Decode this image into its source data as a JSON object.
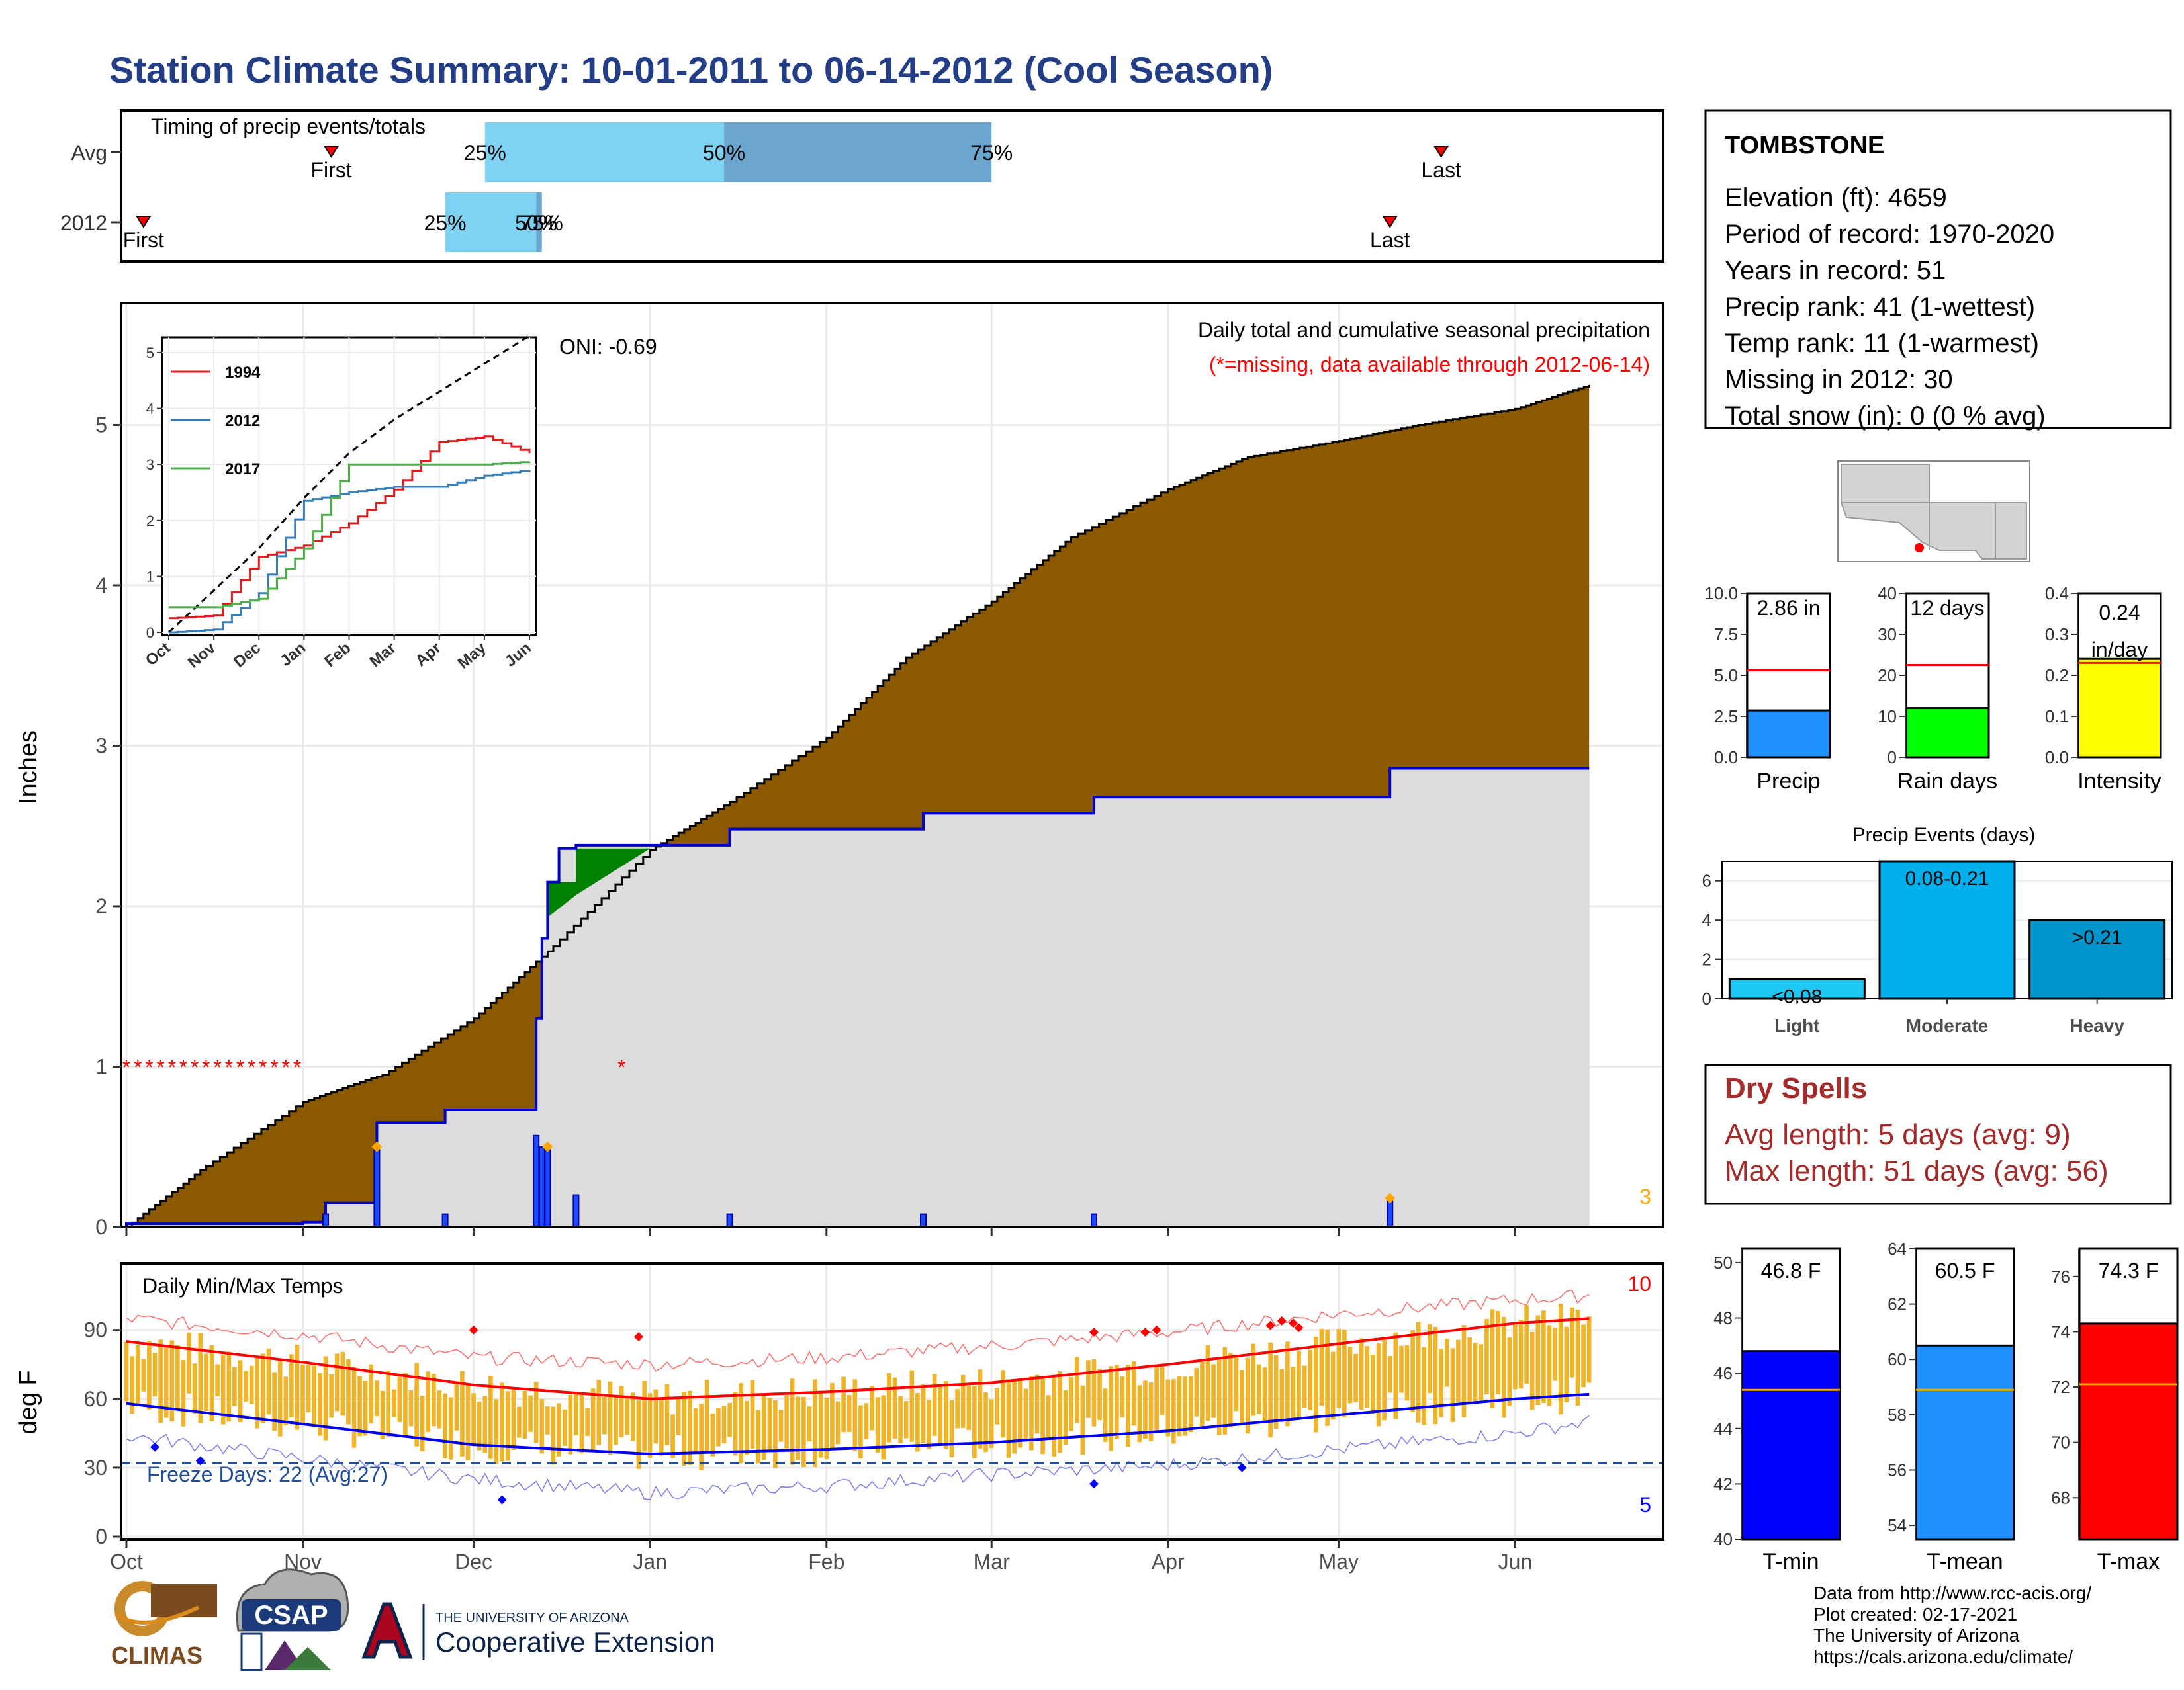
{
  "title": "Station Climate Summary: 10-01-2011 to 06-14-2012 (Cool Season)",
  "colors": {
    "title": "#233d86",
    "cumfill": "#8b5a00",
    "obsfill": "#dcdcdc",
    "obsline": "#0000cc",
    "aheadfill": "#008000",
    "tempbar": "#f0b428",
    "tmaxavg": "#ff0000",
    "tminavg": "#0000ee",
    "freeze": "#1f4e9c",
    "missing": "#ff0000",
    "dry": "#a52a2a",
    "lightbar": "#7fd3f2",
    "darkbar": "#6ca6cf"
  },
  "timing": {
    "title": "Timing of precip events/totals",
    "rows": [
      {
        "label": "Avg",
        "first_label": "First",
        "last_label": "Last",
        "first": "2011-11-06",
        "last": "2012-05-19",
        "p25_label": "25%",
        "p50_label": "50%",
        "p75_label": "75%",
        "p25": "2011-12-03",
        "p50": "2012-01-14",
        "p75": "2012-03-01"
      },
      {
        "label": "2012",
        "first_label": "First",
        "last_label": "Last",
        "first": "2011-10-04",
        "last": "2012-05-10",
        "p25_label": "25%",
        "p50_label": "50%",
        "p75_label": "75%",
        "p25": "2011-11-26",
        "p50": "2011-12-12",
        "p75": "2011-12-13"
      }
    ]
  },
  "station": {
    "name": "TOMBSTONE",
    "lines": [
      "Elevation (ft): 4659",
      "Period of record: 1970-2020",
      "Years in record: 51",
      "Precip rank: 41 (1-wettest)",
      "Temp rank: 11 (1-warmest)",
      "Missing in 2012: 30",
      "Total snow (in): 0 (0 % avg)"
    ]
  },
  "precip_panel": {
    "ylabel": "Inches",
    "annot_title": "Daily total and cumulative seasonal precipitation",
    "annot_missing": "(*=missing, data available through 2012-06-14)",
    "oni": "ONI: -0.69",
    "corner_count": "3",
    "x_ticks": [
      "Oct",
      "Nov",
      "Dec",
      "Jan",
      "Feb",
      "Mar",
      "Apr",
      "May",
      "Jun"
    ],
    "y_ticks": [
      "0",
      "1",
      "2",
      "3",
      "4",
      "5"
    ]
  },
  "inset": {
    "x_ticks": [
      "Oct",
      "Nov",
      "Dec",
      "Jan",
      "Feb",
      "Mar",
      "Apr",
      "May",
      "Jun"
    ],
    "y_ticks": [
      "0",
      "1",
      "2",
      "3",
      "4",
      "5"
    ],
    "legend": [
      {
        "name": "1994",
        "color": "#e41a1c"
      },
      {
        "name": "2012",
        "color": "#377eb8"
      },
      {
        "name": "2017",
        "color": "#4daf4a"
      }
    ]
  },
  "temp_panel": {
    "ylabel": "deg F",
    "title": "Daily Min/Max Temps",
    "freeze_label": "Freeze Days: 22 (Avg:27)",
    "corner_top": "10",
    "corner_bottom": "5",
    "x_ticks": [
      "Oct",
      "Nov",
      "Dec",
      "Jan",
      "Feb",
      "Mar",
      "Apr",
      "May",
      "Jun"
    ],
    "y_ticks": [
      "0",
      "30",
      "60",
      "90"
    ]
  },
  "small_bars": [
    {
      "value_label": "2.86 in",
      "axis_label": "Precip",
      "ticks": [
        "0.0",
        "2.5",
        "5.0",
        "7.5",
        "10.0"
      ],
      "color": "#1e90ff"
    },
    {
      "value_label": "12 days",
      "axis_label": "Rain days",
      "ticks": [
        "0",
        "10",
        "20",
        "30",
        "40"
      ],
      "color": "#00ff00"
    },
    {
      "value_label": "0.24",
      "value_label2": "in/day",
      "axis_label": "Intensity",
      "ticks": [
        "0.0",
        "0.1",
        "0.2",
        "0.3",
        "0.4"
      ],
      "color": "#ffff00"
    }
  ],
  "events": {
    "title": "Precip Events (days)",
    "ticks": [
      "0",
      "2",
      "4",
      "6"
    ],
    "bars": [
      {
        "label": "<0.08",
        "category": "Light",
        "color": "#1ec8f5"
      },
      {
        "label": "0.08-0.21",
        "category": "Moderate",
        "color": "#00b0ec"
      },
      {
        "label": ">0.21",
        "category": "Heavy",
        "color": "#0096cc"
      }
    ]
  },
  "dry": {
    "title": "Dry Spells",
    "avg": "Avg length: 5 days (avg: 9)",
    "max": "Max length: 51 days (avg: 56)"
  },
  "temp_bars": [
    {
      "value_label": "46.8 F",
      "axis_label": "T-min",
      "ticks": [
        "40",
        "42",
        "44",
        "46",
        "48",
        "50"
      ],
      "color": "#0000ff"
    },
    {
      "value_label": "60.5 F",
      "axis_label": "T-mean",
      "ticks": [
        "54",
        "56",
        "58",
        "60",
        "62",
        "64"
      ],
      "color": "#1e90ff"
    },
    {
      "value_label": "74.3 F",
      "axis_label": "T-max",
      "ticks": [
        "68",
        "70",
        "72",
        "74",
        "76"
      ],
      "color": "#ff0000"
    }
  ],
  "footer": {
    "lines": [
      "Data from http://www.rcc-acis.org/",
      "Plot created: 02-17-2021",
      "The University of Arizona",
      "https://cals.arizona.edu/climate/"
    ],
    "logo_climas": "CLIMAS",
    "logo_csap": "CSAP",
    "logo_ua_top": "THE UNIVERSITY OF ARIZONA",
    "logo_ua_bottom": "Cooperative Extension"
  },
  "chart_data": [
    {
      "type": "line",
      "title": "",
      "xlabel": "",
      "ylabel": "Inches",
      "ylim": [
        0,
        5.7
      ],
      "series": [
        {
          "name": "",
          "kind": "cumulative average",
          "x": [
            "2011-10-01",
            "2011-10-15",
            "2011-11-01",
            "2011-11-15",
            "2011-12-01",
            "2011-12-15",
            "2012-01-01",
            "2012-01-15",
            "2012-02-01",
            "2012-02-15",
            "2012-03-01",
            "2012-03-15",
            "2012-04-01",
            "2012-04-15",
            "2012-05-01",
            "2012-05-15",
            "2012-06-01",
            "2012-06-14"
          ],
          "y": [
            0.0,
            0.38,
            0.78,
            0.95,
            1.3,
            1.75,
            2.35,
            2.65,
            3.05,
            3.55,
            3.9,
            4.3,
            4.6,
            4.8,
            4.9,
            5.0,
            5.1,
            5.25
          ]
        },
        {
          "name": "2012",
          "kind": "cumulative observed",
          "x": [
            "2011-10-01",
            "2011-11-01",
            "2011-11-05",
            "2011-11-14",
            "2011-11-26",
            "2011-12-12",
            "2011-12-13",
            "2011-12-14",
            "2011-12-16",
            "2011-12-19",
            "2012-01-15",
            "2012-02-18",
            "2012-03-19",
            "2012-05-10",
            "2012-06-14"
          ],
          "y": [
            0.02,
            0.03,
            0.15,
            0.65,
            0.73,
            1.3,
            1.8,
            2.15,
            2.36,
            2.38,
            2.48,
            2.58,
            2.68,
            2.86,
            2.86
          ]
        }
      ],
      "daily_precip": {
        "x": [
          "2011-11-05",
          "2011-11-14",
          "2011-11-26",
          "2011-12-12",
          "2011-12-13",
          "2011-12-14",
          "2011-12-19",
          "2012-01-15",
          "2012-02-18",
          "2012-03-19",
          "2012-05-10"
        ],
        "y": [
          0.08,
          0.5,
          0.08,
          0.57,
          0.5,
          0.5,
          0.2,
          0.08,
          0.08,
          0.08,
          0.18
        ]
      }
    },
    {
      "type": "line",
      "title": "",
      "xlabel": "",
      "ylabel": "",
      "ylim": [
        0,
        5.6
      ],
      "x": [
        "Oct",
        "Nov",
        "Dec",
        "Jan",
        "Feb",
        "Mar",
        "Apr",
        "May",
        "Jun"
      ],
      "series": [
        {
          "name": "",
          "kind": "average",
          "values": [
            0.0,
            0.75,
            1.5,
            2.4,
            3.2,
            3.8,
            4.3,
            4.8,
            5.3
          ]
        },
        {
          "name": "1994",
          "values": [
            0.25,
            0.3,
            1.35,
            1.55,
            1.95,
            2.55,
            3.4,
            3.5,
            3.2
          ]
        },
        {
          "name": "2012",
          "values": [
            0.0,
            0.05,
            0.7,
            2.35,
            2.5,
            2.6,
            2.6,
            2.8,
            2.9
          ]
        },
        {
          "name": "2017",
          "values": [
            0.45,
            0.45,
            0.6,
            1.5,
            3.0,
            3.0,
            3.0,
            3.0,
            3.05
          ]
        }
      ]
    },
    {
      "type": "bar",
      "title": "",
      "xlabel": "",
      "ylabel": "deg F",
      "ylim": [
        0,
        110
      ],
      "x": [
        "2011-10-01",
        "2011-11-01",
        "2011-12-01",
        "2012-01-01",
        "2012-02-01",
        "2012-03-01",
        "2012-04-01",
        "2012-05-01",
        "2012-06-01",
        "2012-06-14"
      ],
      "series": [
        {
          "name": "",
          "kind": "average max",
          "values": [
            85,
            76,
            66,
            60,
            63,
            67,
            75,
            84,
            93,
            95
          ]
        },
        {
          "name": "",
          "kind": "average min",
          "values": [
            58,
            49,
            40,
            36,
            38,
            41,
            46,
            53,
            60,
            62
          ]
        },
        {
          "name": "",
          "kind": "record max",
          "values": [
            95,
            88,
            78,
            75,
            78,
            83,
            89,
            97,
            103,
            105
          ]
        },
        {
          "name": "",
          "kind": "record min",
          "values": [
            44,
            34,
            25,
            19,
            22,
            27,
            31,
            38,
            45,
            50
          ]
        }
      ],
      "freeze_line": 32
    },
    {
      "type": "bar",
      "categories": [
        "Precip"
      ],
      "values": [
        2.86
      ],
      "reference": 5.3,
      "ylim": [
        0,
        10
      ]
    },
    {
      "type": "bar",
      "categories": [
        "Rain days"
      ],
      "values": [
        12
      ],
      "reference": 22.5,
      "ylim": [
        0,
        40
      ]
    },
    {
      "type": "bar",
      "categories": [
        "Intensity"
      ],
      "values": [
        0.24
      ],
      "reference": 0.23,
      "ylim": [
        0,
        0.4
      ]
    },
    {
      "type": "bar",
      "title": "Precip Events (days)",
      "categories": [
        "Light",
        "Moderate",
        "Heavy"
      ],
      "values": [
        1,
        7,
        4
      ],
      "ylim": [
        0,
        7
      ]
    },
    {
      "type": "bar",
      "categories": [
        "T-min"
      ],
      "values": [
        46.8
      ],
      "reference": 45.4,
      "ylim": [
        40,
        50.5
      ]
    },
    {
      "type": "bar",
      "categories": [
        "T-mean"
      ],
      "values": [
        60.5
      ],
      "reference": 58.9,
      "ylim": [
        53.5,
        64
      ]
    },
    {
      "type": "bar",
      "categories": [
        "T-max"
      ],
      "values": [
        74.3
      ],
      "reference": 72.1,
      "ylim": [
        66.5,
        77
      ]
    }
  ]
}
